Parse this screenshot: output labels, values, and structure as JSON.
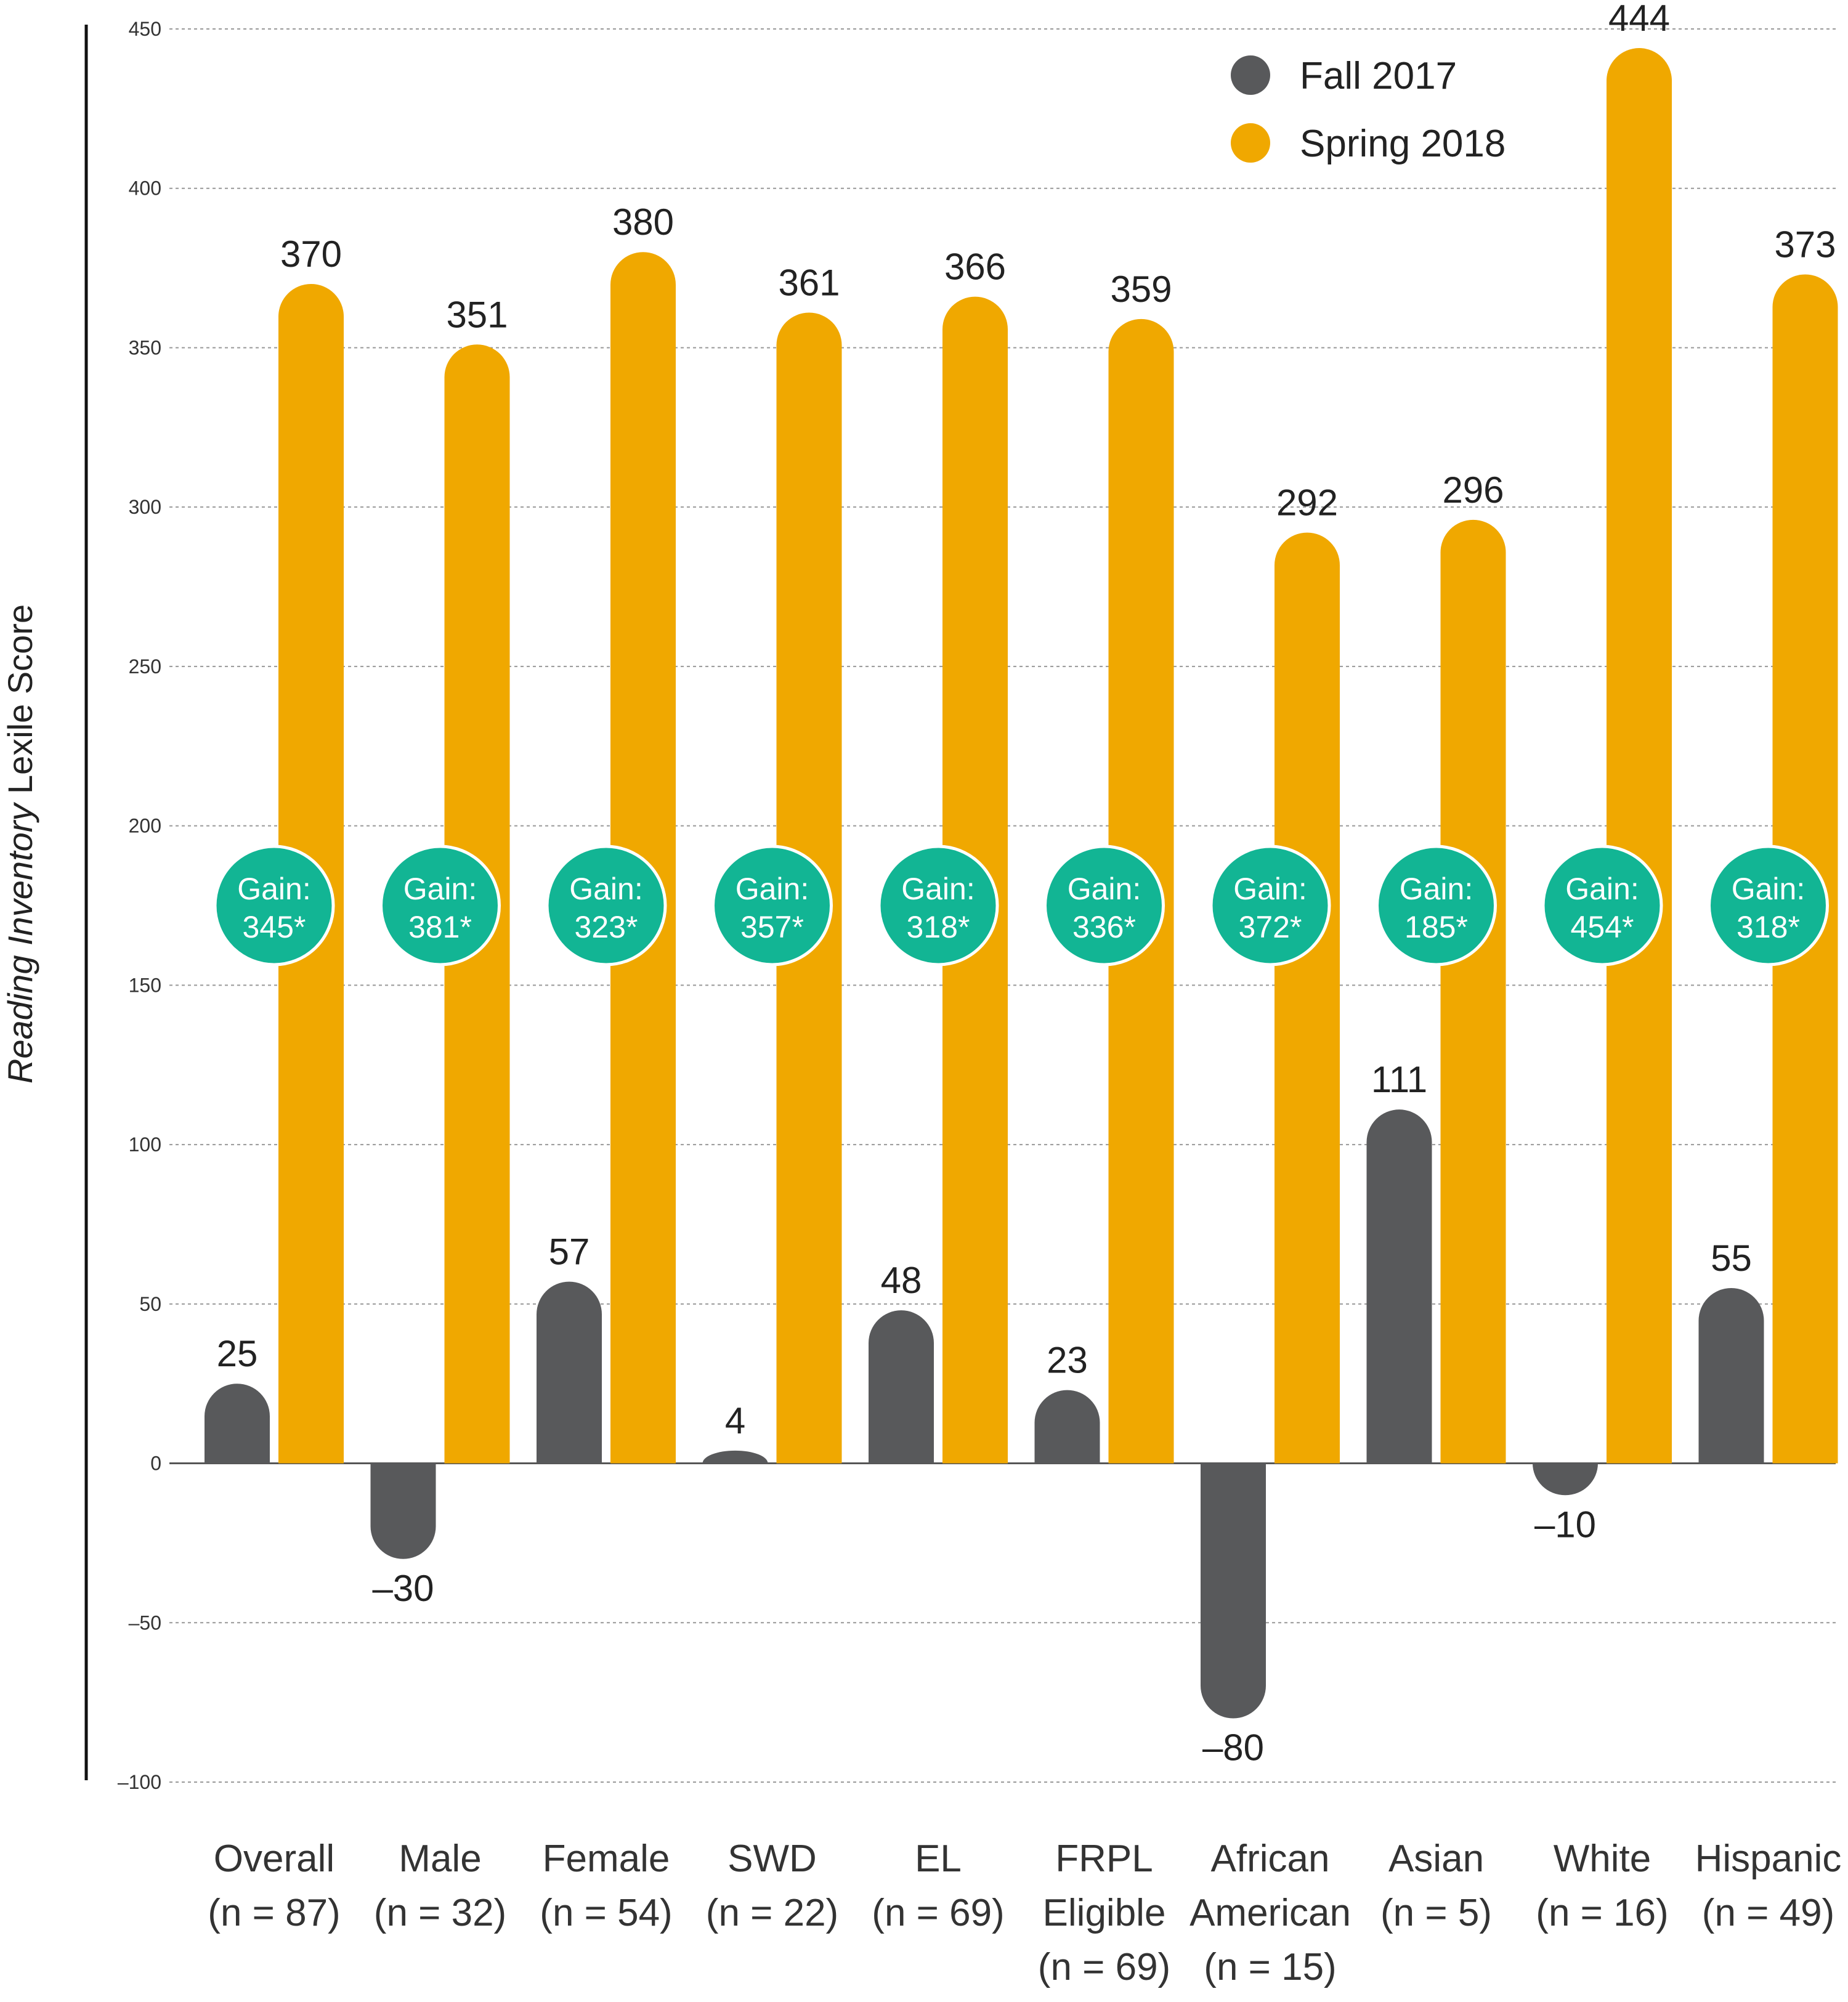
{
  "chart_data": {
    "type": "bar",
    "title": "",
    "ylabel_italic": "Reading Inventory",
    "ylabel_rest": "Lexile Score",
    "xlabel": "",
    "ylim": [
      -100,
      450
    ],
    "yticks": [
      450,
      400,
      350,
      300,
      250,
      200,
      150,
      100,
      50,
      0,
      -50,
      -100
    ],
    "ytick_labels": [
      "450",
      "400",
      "350",
      "300",
      "250",
      "200",
      "150",
      "100",
      "50",
      "0",
      "–50",
      "–100"
    ],
    "grid": true,
    "legend_position": "top-right",
    "categories": [
      {
        "lines": [
          "Overall",
          "(n = 87)"
        ]
      },
      {
        "lines": [
          "Male",
          "(n = 32)"
        ]
      },
      {
        "lines": [
          "Female",
          "(n = 54)"
        ]
      },
      {
        "lines": [
          "SWD",
          "(n = 22)"
        ]
      },
      {
        "lines": [
          "EL",
          "(n = 69)"
        ]
      },
      {
        "lines": [
          "FRPL",
          "Eligible",
          "(n = 69)"
        ]
      },
      {
        "lines": [
          "African",
          "American",
          "(n = 15)"
        ]
      },
      {
        "lines": [
          "Asian",
          "(n = 5)"
        ]
      },
      {
        "lines": [
          "White",
          "(n = 16)"
        ]
      },
      {
        "lines": [
          "Hispanic",
          "(n = 49)"
        ]
      }
    ],
    "series": [
      {
        "name": "Fall 2017",
        "color": "#58595b",
        "values": [
          25,
          -30,
          57,
          4,
          48,
          23,
          -80,
          111,
          -10,
          55
        ],
        "labels": [
          "25",
          "–30",
          "57",
          "4",
          "48",
          "23",
          "–80",
          "111",
          "–10",
          "55"
        ]
      },
      {
        "name": "Spring 2018",
        "color": "#f0a800",
        "values": [
          370,
          351,
          380,
          361,
          366,
          359,
          292,
          296,
          444,
          373
        ],
        "labels": [
          "370",
          "351",
          "380",
          "361",
          "366",
          "359",
          "292",
          "296",
          "444",
          "373"
        ]
      }
    ],
    "gains": {
      "prefix": "Gain:",
      "values": [
        "345*",
        "381*",
        "323*",
        "357*",
        "318*",
        "336*",
        "372*",
        "185*",
        "454*",
        "318*"
      ],
      "color": "#12b594"
    }
  }
}
